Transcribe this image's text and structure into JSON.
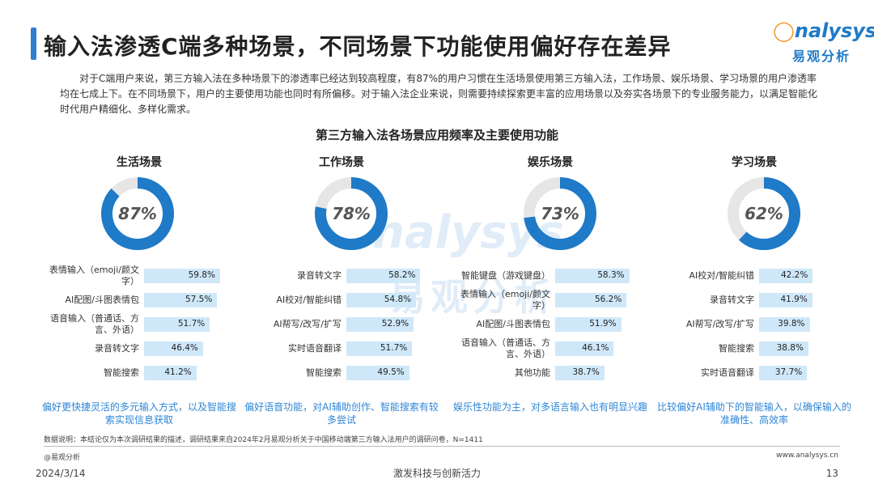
{
  "header": {
    "title": "输入法渗透C端多种场景，不同场景下功能使用偏好存在差异",
    "logo_en": "nalysys",
    "logo_cn": "易观分析"
  },
  "intro": "对于C端用户来说，第三方输入法在多种场景下的渗透率已经达到较高程度，有87%的用户习惯在生活场景使用第三方输入法，工作场景、娱乐场景、学习场景的用户渗透率均在七成上下。在不同场景下，用户的主要使用功能也同时有所偏移。对于输入法企业来说，则需要持续探索更丰富的应用场景以及夯实各场景下的专业服务能力，以满足智能化时代用户精细化、多样化需求。",
  "colors": {
    "accent": "#2f86d6",
    "donut_fill": "#1f7ac7",
    "donut_track": "#e6e6e6",
    "bar_fill": "#cfe8f9",
    "note_text": "#2f86d6"
  },
  "chart_data": {
    "type": "bar",
    "title": "第三方输入法各场景应用频率及主要使用功能",
    "scenes": [
      {
        "name": "生活场景",
        "rate": 87,
        "rate_label": "87%",
        "features": [
          {
            "label": "表情输入（emoji/颜文字）",
            "value": 59.8,
            "value_label": "59.8%"
          },
          {
            "label": "AI配图/斗图表情包",
            "value": 57.5,
            "value_label": "57.5%"
          },
          {
            "label": "语音输入（普通话、方言、外语）",
            "value": 51.7,
            "value_label": "51.7%"
          },
          {
            "label": "录音转文字",
            "value": 46.4,
            "value_label": "46.4%"
          },
          {
            "label": "智能搜索",
            "value": 41.2,
            "value_label": "41.2%"
          }
        ],
        "note": "偏好更快捷灵活的多元输入方式，以及智能搜索实现信息获取"
      },
      {
        "name": "工作场景",
        "rate": 78,
        "rate_label": "78%",
        "features": [
          {
            "label": "录音转文字",
            "value": 58.2,
            "value_label": "58.2%"
          },
          {
            "label": "AI校对/智能纠错",
            "value": 54.8,
            "value_label": "54.8%"
          },
          {
            "label": "AI帮写/改写/扩写",
            "value": 52.9,
            "value_label": "52.9%"
          },
          {
            "label": "实时语音翻译",
            "value": 51.7,
            "value_label": "51.7%"
          },
          {
            "label": "智能搜索",
            "value": 49.5,
            "value_label": "49.5%"
          }
        ],
        "note": "偏好语音功能，对AI辅助创作、智能搜索有较多尝试"
      },
      {
        "name": "娱乐场景",
        "rate": 73,
        "rate_label": "73%",
        "features": [
          {
            "label": "智能键盘（游戏键盘）",
            "value": 58.3,
            "value_label": "58.3%"
          },
          {
            "label": "表情输入（emoji/颜文字）",
            "value": 56.2,
            "value_label": "56.2%"
          },
          {
            "label": "AI配图/斗图表情包",
            "value": 51.9,
            "value_label": "51.9%"
          },
          {
            "label": "语音输入（普通话、方言、外语）",
            "value": 46.1,
            "value_label": "46.1%"
          },
          {
            "label": "其他功能",
            "value": 38.7,
            "value_label": "38.7%"
          }
        ],
        "note": "娱乐性功能为主，对多语言输入也有明显兴趣"
      },
      {
        "name": "学习场景",
        "rate": 62,
        "rate_label": "62%",
        "features": [
          {
            "label": "AI校对/智能纠错",
            "value": 42.2,
            "value_label": "42.2%"
          },
          {
            "label": "录音转文字",
            "value": 41.9,
            "value_label": "41.9%"
          },
          {
            "label": "AI帮写/改写/扩写",
            "value": 39.8,
            "value_label": "39.8%"
          },
          {
            "label": "智能搜索",
            "value": 38.8,
            "value_label": "38.8%"
          },
          {
            "label": "实时语音翻译",
            "value": 37.7,
            "value_label": "37.7%"
          }
        ],
        "note": "比较偏好AI辅助下的智能输入，以确保输入的准确性、高效率"
      }
    ]
  },
  "footer": {
    "source": "数据说明：本结论仅为本次调研结果的描述，调研结果来自2024年2月易观分析关于中国移动端第三方输入法用户的调研问卷，N=1411",
    "brand": "@易观分析",
    "website": "www.analysys.cn",
    "date": "2024/3/14",
    "slogan": "激发科技与创新活力",
    "page": "13"
  },
  "watermark": {
    "en": "nalysys",
    "cn": "易观分析"
  }
}
